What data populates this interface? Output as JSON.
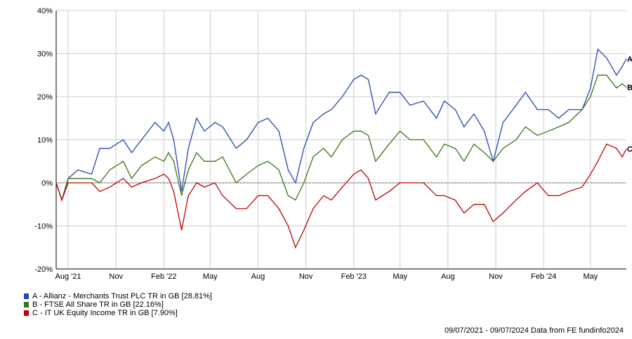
{
  "chart_data": {
    "type": "line",
    "title": "",
    "xlabel": "",
    "ylabel": "",
    "ylim": [
      -20,
      40
    ],
    "xlim": [
      "2021-07-09",
      "2024-07-09"
    ],
    "grid": true,
    "y_ticks": [
      {
        "value": 40,
        "label": "40%"
      },
      {
        "value": 30,
        "label": "30%"
      },
      {
        "value": 20,
        "label": "20%"
      },
      {
        "value": 10,
        "label": "10%"
      },
      {
        "value": 0,
        "label": "0%"
      },
      {
        "value": -10,
        "label": "-10%"
      },
      {
        "value": -20,
        "label": "-20%"
      }
    ],
    "x_ticks": [
      {
        "date": "2021-08-01",
        "label": "Aug '21"
      },
      {
        "date": "2021-11-01",
        "label": "Nov"
      },
      {
        "date": "2022-02-01",
        "label": "Feb '22"
      },
      {
        "date": "2022-05-01",
        "label": "May"
      },
      {
        "date": "2022-08-01",
        "label": "Aug"
      },
      {
        "date": "2022-11-01",
        "label": "Nov"
      },
      {
        "date": "2023-02-01",
        "label": "Feb '23"
      },
      {
        "date": "2023-05-01",
        "label": "May"
      },
      {
        "date": "2023-08-01",
        "label": "Aug"
      },
      {
        "date": "2023-11-01",
        "label": "Nov"
      },
      {
        "date": "2024-02-01",
        "label": "Feb '24"
      },
      {
        "date": "2024-05-01",
        "label": "May"
      }
    ],
    "x": [
      "2021-07-09",
      "2021-07-20",
      "2021-08-01",
      "2021-08-20",
      "2021-09-15",
      "2021-10-01",
      "2021-10-20",
      "2021-11-15",
      "2021-12-01",
      "2021-12-20",
      "2022-01-15",
      "2022-02-01",
      "2022-02-10",
      "2022-02-20",
      "2022-03-07",
      "2022-03-20",
      "2022-04-05",
      "2022-04-20",
      "2022-05-10",
      "2022-05-25",
      "2022-06-20",
      "2022-07-10",
      "2022-08-01",
      "2022-08-20",
      "2022-09-10",
      "2022-09-28",
      "2022-10-12",
      "2022-10-28",
      "2022-11-15",
      "2022-12-05",
      "2022-12-20",
      "2023-01-10",
      "2023-02-01",
      "2023-02-15",
      "2023-03-01",
      "2023-03-15",
      "2023-04-10",
      "2023-05-01",
      "2023-05-20",
      "2023-06-15",
      "2023-07-10",
      "2023-07-25",
      "2023-08-15",
      "2023-09-01",
      "2023-09-20",
      "2023-10-10",
      "2023-10-27",
      "2023-11-15",
      "2023-12-10",
      "2023-12-28",
      "2024-01-20",
      "2024-02-10",
      "2024-03-01",
      "2024-03-20",
      "2024-04-15",
      "2024-05-01",
      "2024-05-15",
      "2024-06-01",
      "2024-06-20",
      "2024-07-01",
      "2024-07-09"
    ],
    "series": [
      {
        "name": "A - Allianz - Merchants Trust PLC TR in GB [28.81%]",
        "end_label": "A",
        "color": "#2447b0",
        "values": [
          0,
          -4,
          1,
          3,
          2,
          8,
          8,
          10,
          7,
          10,
          14,
          12,
          14,
          10,
          -2,
          8,
          15,
          12,
          14,
          13,
          8,
          10,
          14,
          15,
          12,
          3,
          0,
          8,
          14,
          16,
          17,
          20,
          24,
          25,
          24,
          16,
          21,
          21,
          18,
          19,
          15,
          19,
          17,
          13,
          16,
          12,
          5,
          14,
          18,
          21,
          17,
          17,
          15,
          17,
          17,
          22,
          31,
          29,
          25,
          27,
          28.81
        ]
      },
      {
        "name": "B - FTSE All Share TR in GB [22.16%]",
        "end_label": "B",
        "color": "#3a7317",
        "values": [
          0,
          -4,
          1,
          1,
          1,
          0,
          3,
          5,
          1,
          4,
          6,
          5,
          7,
          5,
          -3,
          3,
          7,
          5,
          5,
          6,
          0,
          2,
          4,
          5,
          3,
          -3,
          -4,
          0,
          6,
          8,
          6,
          10,
          12,
          12,
          11,
          5,
          9,
          12,
          10,
          10,
          6,
          9,
          8,
          5,
          9,
          7,
          5,
          8,
          10,
          13,
          11,
          12,
          13,
          14,
          17,
          20,
          25,
          25,
          22,
          23,
          22.16
        ]
      },
      {
        "name": "C - IT UK Equity Income TR in GB [7.90%]",
        "end_label": "C",
        "color": "#c00000",
        "values": [
          0,
          -4,
          0,
          0,
          0,
          -2,
          -1,
          1,
          -1,
          0,
          1,
          2,
          1,
          -2,
          -11,
          -3,
          0,
          -1,
          0,
          -3,
          -6,
          -6,
          -3,
          -3,
          -6,
          -10,
          -15,
          -11,
          -6,
          -3,
          -4,
          -1,
          2,
          3,
          1,
          -4,
          -2,
          0,
          0,
          0,
          -3,
          -3,
          -4,
          -7,
          -5,
          -5,
          -9,
          -7,
          -4,
          -2,
          0,
          -3,
          -3,
          -2,
          -1,
          2,
          5,
          9,
          8,
          6,
          7.9
        ]
      }
    ]
  },
  "footer": "09/07/2021 - 09/07/2024 Data from FE fundinfo2024"
}
